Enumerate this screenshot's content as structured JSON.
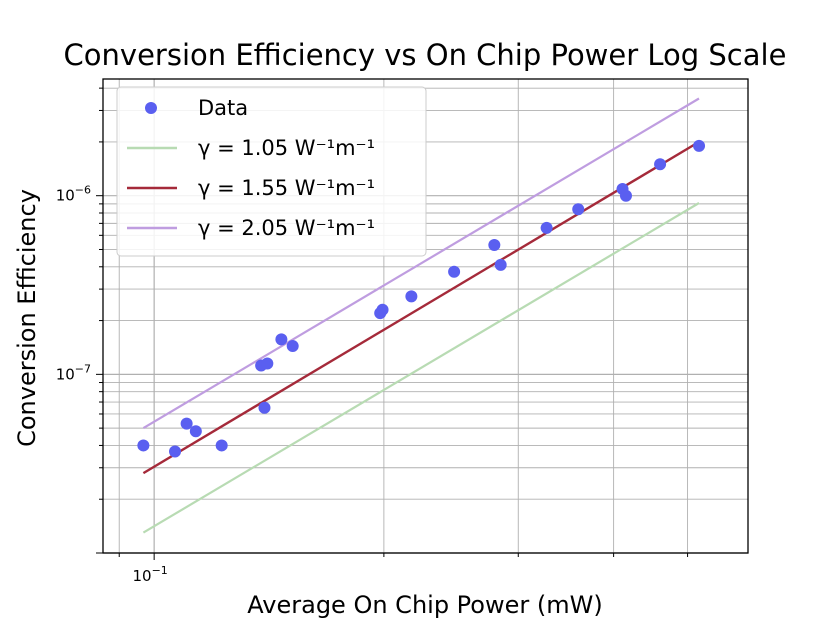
{
  "chart_data": {
    "type": "scatter",
    "title": "Conversion Efficiency vs On Chip Power Log Scale",
    "xlabel": "Average On Chip Power (mW)",
    "ylabel": "Conversion Efficiency",
    "xscale": "log",
    "yscale": "log",
    "xlim": [
      0.0857,
      0.6
    ],
    "ylim": [
      1e-08,
      4.5e-06
    ],
    "grid": true,
    "legend_position": "top-left",
    "x_tick_labels": [
      {
        "base": "10",
        "exp": "−1",
        "value": 0.1
      }
    ],
    "y_tick_labels": [
      {
        "base": "10",
        "exp": "−7",
        "value": 1e-07
      },
      {
        "base": "10",
        "exp": "−6",
        "value": 1e-06
      }
    ],
    "series": [
      {
        "name": "Data",
        "kind": "scatter",
        "color": "#5a5ff0",
        "points": [
          [
            0.0968,
            4e-08
          ],
          [
            0.1065,
            3.7e-08
          ],
          [
            0.1103,
            5.3e-08
          ],
          [
            0.1134,
            4.8e-08
          ],
          [
            0.1226,
            4e-08
          ],
          [
            0.1381,
            1.12e-07
          ],
          [
            0.1395,
            6.5e-08
          ],
          [
            0.1407,
            1.15e-07
          ],
          [
            0.1468,
            1.57e-07
          ],
          [
            0.1519,
            1.44e-07
          ],
          [
            0.1978,
            2.2e-07
          ],
          [
            0.1992,
            2.3e-07
          ],
          [
            0.2173,
            2.73e-07
          ],
          [
            0.2472,
            3.75e-07
          ],
          [
            0.2791,
            5.3e-07
          ],
          [
            0.2845,
            4.1e-07
          ],
          [
            0.3268,
            6.6e-07
          ],
          [
            0.3595,
            8.4e-07
          ],
          [
            0.4109,
            1.09e-06
          ],
          [
            0.4152,
            1e-06
          ],
          [
            0.4602,
            1.5e-06
          ],
          [
            0.5176,
            1.9e-06
          ]
        ]
      },
      {
        "name": "γ = 1.05 W⁻¹m⁻¹",
        "kind": "line",
        "color": "#b8dbb3",
        "points": [
          [
            0.0968,
            1.3e-08
          ],
          [
            0.5176,
            9.1e-07
          ]
        ]
      },
      {
        "name": "γ = 1.55 W⁻¹m⁻¹",
        "kind": "line",
        "color": "#a52a3a",
        "points": [
          [
            0.0968,
            2.8e-08
          ],
          [
            0.5176,
            2e-06
          ]
        ]
      },
      {
        "name": "γ = 2.05 W⁻¹m⁻¹",
        "kind": "line",
        "color": "#bf9de0",
        "points": [
          [
            0.0968,
            5e-08
          ],
          [
            0.5176,
            3.5e-06
          ]
        ]
      }
    ],
    "legend": [
      {
        "label": "Data",
        "marker": "dot",
        "color": "#5a5ff0"
      },
      {
        "label": "γ = 1.05 W⁻¹m⁻¹",
        "marker": "line",
        "color": "#b8dbb3"
      },
      {
        "label": "γ = 1.55 W⁻¹m⁻¹",
        "marker": "line",
        "color": "#a52a3a"
      },
      {
        "label": "γ = 2.05 W⁻¹m⁻¹",
        "marker": "line",
        "color": "#bf9de0"
      }
    ]
  }
}
